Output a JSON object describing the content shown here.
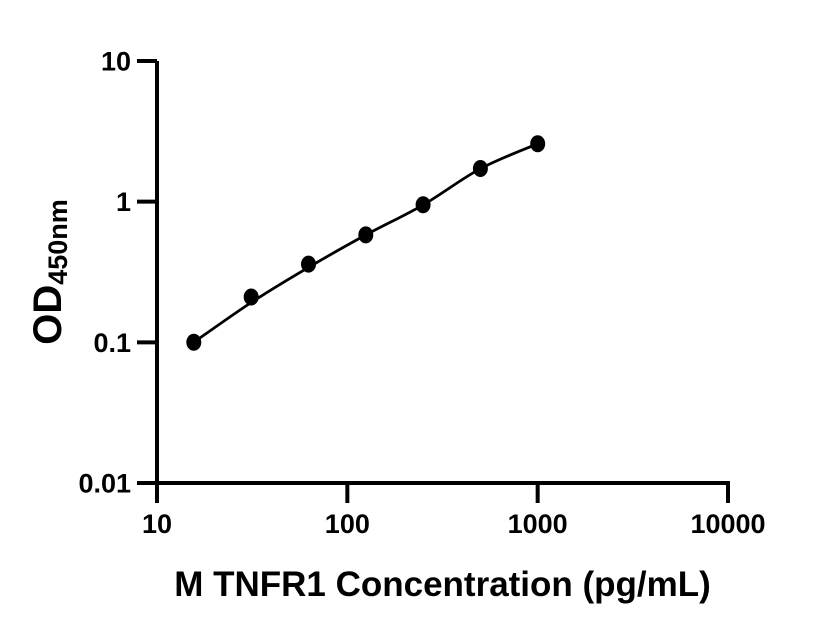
{
  "figure": {
    "background_color": "#ffffff",
    "axis_color": "#000000",
    "text_color": "#000000"
  },
  "chart_data": {
    "type": "scatter",
    "title": "",
    "xlabel": "M TNFR1 Concentration (pg/mL)",
    "ylabel": {
      "main": "OD",
      "subscript": "450nm"
    },
    "x_scale": "log",
    "y_scale": "log",
    "xlim": [
      10,
      10000
    ],
    "ylim": [
      0.01,
      10
    ],
    "grid": false,
    "legend": false,
    "x_ticks": [
      {
        "value": 10,
        "label": "10"
      },
      {
        "value": 100,
        "label": "100"
      },
      {
        "value": 1000,
        "label": "1000"
      },
      {
        "value": 10000,
        "label": "10000"
      }
    ],
    "y_ticks": [
      {
        "value": 0.01,
        "label": "0.01"
      },
      {
        "value": 0.1,
        "label": "0.1"
      },
      {
        "value": 1,
        "label": "1"
      },
      {
        "value": 10,
        "label": "10"
      }
    ],
    "series": [
      {
        "marker": {
          "shape": "filled-circle",
          "color": "#000000",
          "radius_x": 7.5,
          "radius_y": 8.5
        },
        "points": [
          {
            "x": 15.6,
            "y": 0.1
          },
          {
            "x": 31.25,
            "y": 0.21
          },
          {
            "x": 62.5,
            "y": 0.36
          },
          {
            "x": 125,
            "y": 0.58
          },
          {
            "x": 250,
            "y": 0.95
          },
          {
            "x": 500,
            "y": 1.72
          },
          {
            "x": 1000,
            "y": 2.58
          }
        ]
      }
    ],
    "fit_curve": {
      "color": "#000000",
      "width": 2.8,
      "points": [
        {
          "x": 15.6,
          "y": 0.1
        },
        {
          "x": 31.25,
          "y": 0.192
        },
        {
          "x": 62.5,
          "y": 0.341
        },
        {
          "x": 125,
          "y": 0.58
        },
        {
          "x": 250,
          "y": 0.948
        },
        {
          "x": 500,
          "y": 1.715
        },
        {
          "x": 1000,
          "y": 2.58
        }
      ]
    }
  }
}
